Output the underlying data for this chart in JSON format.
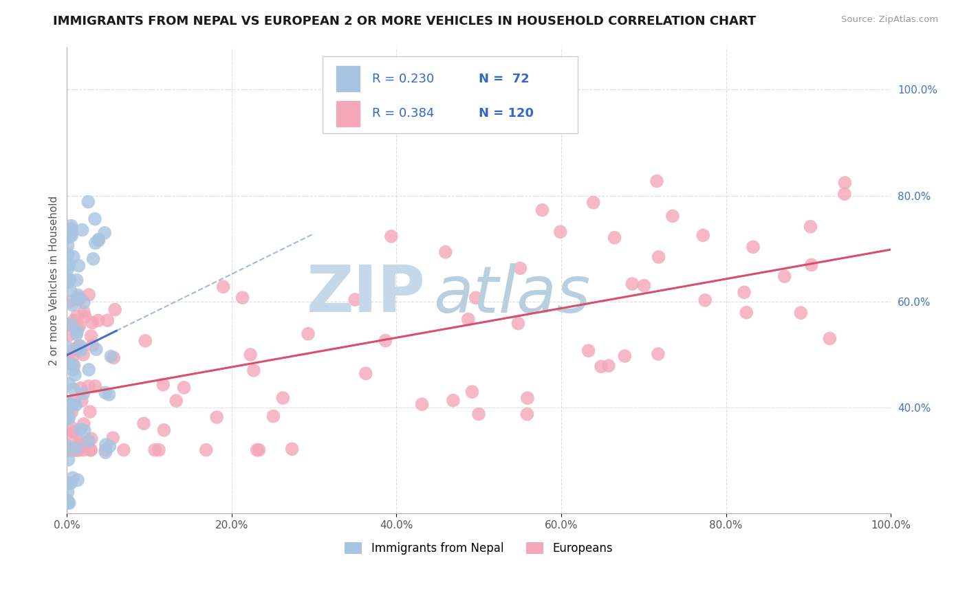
{
  "title": "IMMIGRANTS FROM NEPAL VS EUROPEAN 2 OR MORE VEHICLES IN HOUSEHOLD CORRELATION CHART",
  "source": "Source: ZipAtlas.com",
  "ylabel": "2 or more Vehicles in Household",
  "legend_labels": [
    "Immigrants from Nepal",
    "Europeans"
  ],
  "R_nepal": 0.23,
  "N_nepal": 72,
  "R_european": 0.384,
  "N_european": 120,
  "nepal_color": "#a8c4e0",
  "european_color": "#f4a7b9",
  "nepal_line_color": "#4472c4",
  "european_line_color": "#d94f6a",
  "background_color": "#ffffff",
  "grid_color": "#dddddd",
  "watermark_zip_color": "#c5d8ea",
  "watermark_atlas_color": "#b8cfe0"
}
